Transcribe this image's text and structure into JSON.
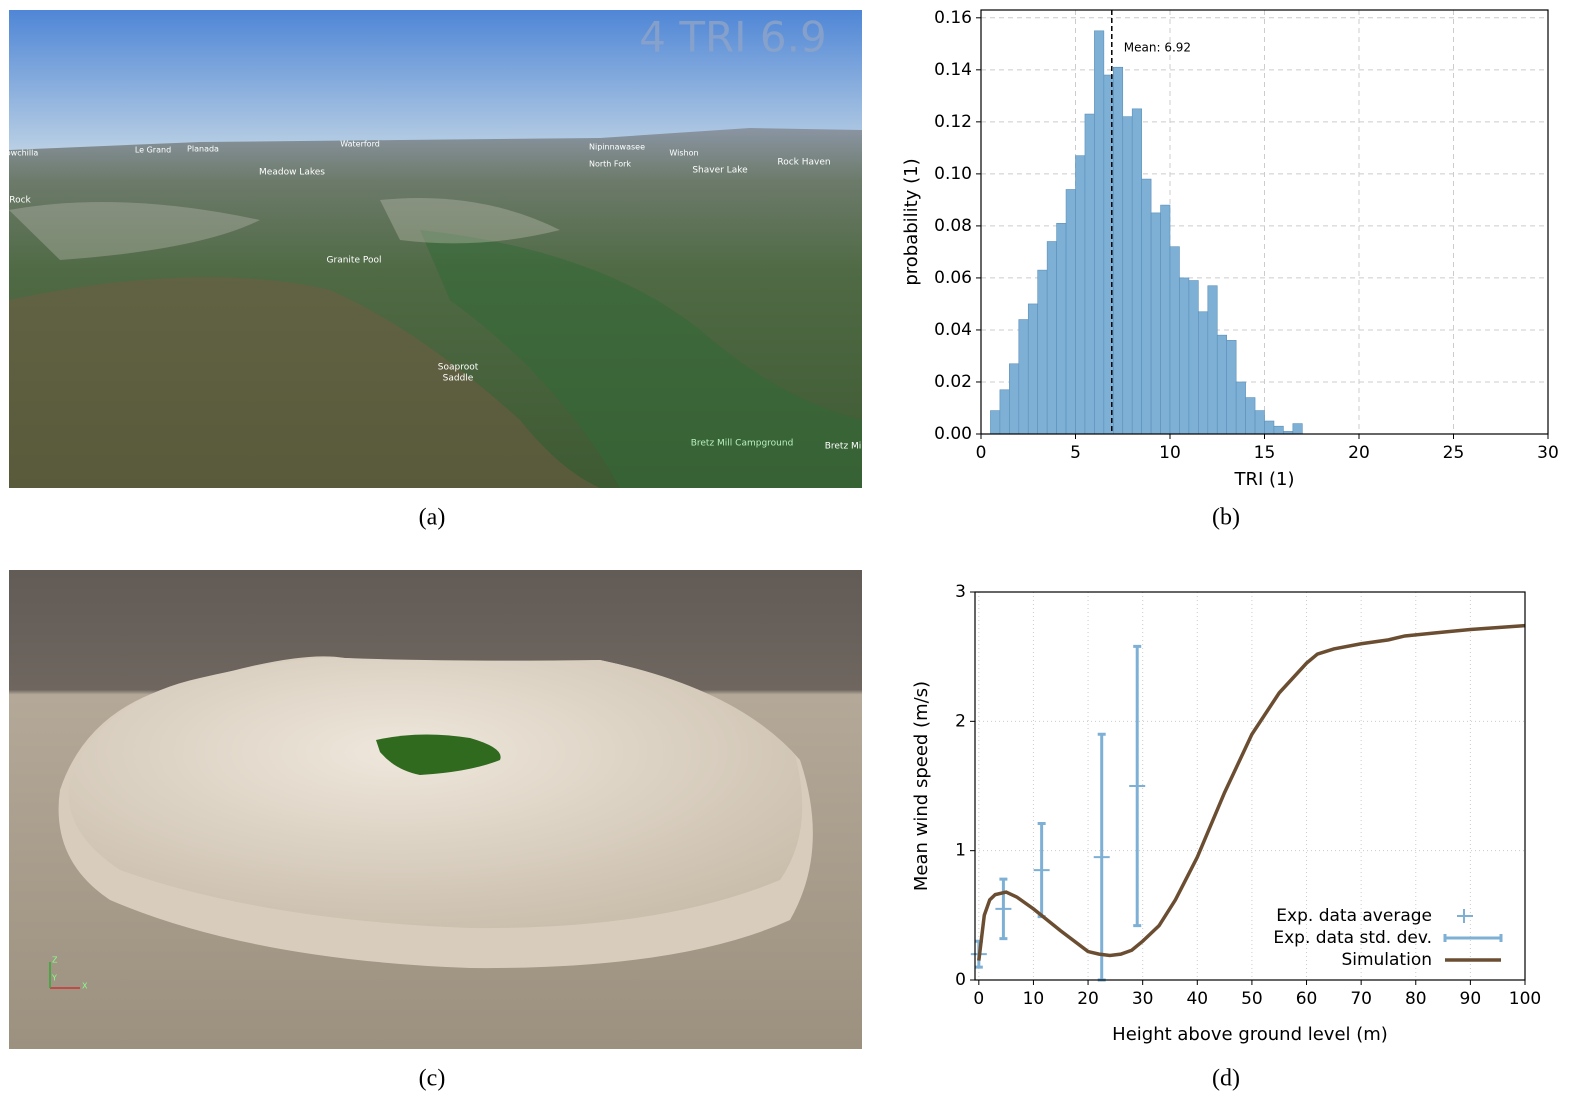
{
  "captions": [
    "(a)",
    "(b)",
    "(c)",
    "(d)"
  ],
  "photo_a": {
    "overlay": "4 TRI 6.9",
    "place_labels": [
      "owchilla",
      "Le Grand",
      "Planada",
      "Waterford",
      "Nipinnawasee",
      "Wishon",
      "North Fork",
      "Meadow Lakes",
      "Shaver Lake",
      "Rock Haven",
      "Rock",
      "Granite Pool",
      "Soaproot",
      "Saddle",
      "Bretz Mill Campground",
      "Bretz Mi"
    ]
  },
  "render_c": {
    "axis_labels": [
      "Z",
      "Y",
      "X"
    ]
  },
  "chart_data": [
    {
      "type": "histogram",
      "xlabel": "TRI (1)",
      "ylabel": "probability (1)",
      "color": "#7eb0d5",
      "bins": [
        0.5,
        1,
        1.5,
        2,
        2.5,
        3,
        3.5,
        4,
        4.5,
        5,
        5.5,
        6,
        6.5,
        7,
        7.5,
        8,
        8.5,
        9,
        9.5,
        10,
        10.5,
        11,
        11.5,
        12,
        12.5,
        13,
        13.5,
        14,
        14.5,
        15,
        15.5,
        16,
        16.5,
        17
      ],
      "values": [
        0.009,
        0.017,
        0.027,
        0.044,
        0.05,
        0.063,
        0.074,
        0.081,
        0.094,
        0.107,
        0.123,
        0.155,
        0.138,
        0.141,
        0.122,
        0.125,
        0.098,
        0.085,
        0.088,
        0.072,
        0.06,
        0.059,
        0.047,
        0.057,
        0.038,
        0.036,
        0.02,
        0.014,
        0.009,
        0.005,
        0.003,
        0.001,
        0.004
      ],
      "mean_line": 6.92,
      "annotation": "Mean: 6.92",
      "xlim": [
        0,
        30
      ],
      "xticks": [
        0,
        5,
        10,
        15,
        20,
        25,
        30
      ],
      "ylim": [
        0,
        0.163
      ],
      "yticks": [
        {
          "value": 0,
          "label": "0.00"
        },
        {
          "value": 0.02,
          "label": "0.02"
        },
        {
          "value": 0.04,
          "label": "0.04"
        },
        {
          "value": 0.06,
          "label": "0.06"
        },
        {
          "value": 0.08,
          "label": "0.08"
        },
        {
          "value": 0.1,
          "label": "0.10"
        },
        {
          "value": 0.12,
          "label": "0.12"
        },
        {
          "value": 0.14,
          "label": "0.14"
        },
        {
          "value": 0.16,
          "label": "0.16"
        }
      ],
      "grid": true
    },
    {
      "type": "line",
      "xlabel": "Height above ground level (m)",
      "ylabel": "Mean wind speed (m/s)",
      "xlim": [
        -0.7,
        100
      ],
      "xticks": [
        0,
        10,
        20,
        30,
        40,
        50,
        60,
        70,
        80,
        90,
        100
      ],
      "ylim": [
        0,
        3
      ],
      "yticks": [
        0,
        1,
        2,
        3
      ],
      "grid": true,
      "legend": "lower right",
      "series": [
        {
          "name": "Exp. data average",
          "color": "#7eb0d5",
          "x": [
            0,
            4.5,
            11.5,
            22.5,
            29
          ],
          "values": [
            0.2,
            0.55,
            0.85,
            0.95,
            1.5
          ]
        },
        {
          "name": "Exp. data std. dev.",
          "color": "#7eb0d5",
          "x": [
            0,
            4.5,
            11.5,
            22.5,
            29
          ],
          "values": [
            0.2,
            0.55,
            0.85,
            0.95,
            1.5
          ],
          "errors": [
            0.1,
            0.23,
            0.36,
            0.95,
            1.08
          ]
        },
        {
          "name": "Simulation",
          "color": "#6b4e32",
          "x": [
            0,
            1,
            2,
            3,
            5,
            7,
            10,
            15,
            20,
            22,
            24,
            26,
            28,
            30,
            33,
            36,
            40,
            45,
            50,
            55,
            60,
            62,
            65,
            70,
            75,
            78,
            85,
            90,
            100
          ],
          "values": [
            0.15,
            0.5,
            0.62,
            0.66,
            0.68,
            0.64,
            0.55,
            0.38,
            0.22,
            0.2,
            0.19,
            0.2,
            0.23,
            0.3,
            0.42,
            0.62,
            0.95,
            1.45,
            1.9,
            2.22,
            2.45,
            2.52,
            2.56,
            2.6,
            2.63,
            2.66,
            2.69,
            2.71,
            2.74
          ]
        }
      ]
    }
  ]
}
